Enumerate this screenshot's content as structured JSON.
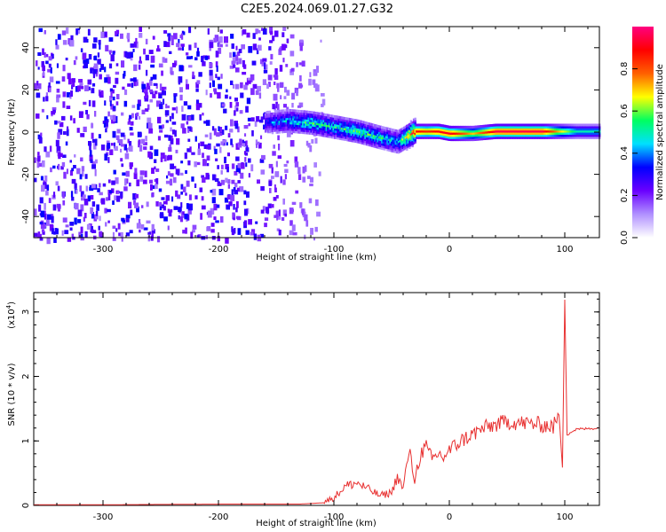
{
  "chart_data": [
    {
      "type": "heatmap",
      "title": "C2E5.2024.069.01.27.G32",
      "xlabel": "Height of straight line (km)",
      "ylabel": "Frequency (Hz)",
      "xlim": [
        -360,
        130
      ],
      "ylim": [
        -50,
        50
      ],
      "xticks": [
        -300,
        -200,
        -100,
        0,
        100
      ],
      "yticks": [
        -40,
        -20,
        0,
        20,
        40
      ],
      "colorbar": {
        "label": "Normalized spectral amplitude",
        "range": [
          0,
          1
        ],
        "ticks": [
          "0.0",
          "0.2",
          "0.4",
          "0.6",
          "0.8"
        ],
        "colors": [
          "#ffffff",
          "#b090ff",
          "#6a00ff",
          "#0000ff",
          "#00e0ff",
          "#00ff60",
          "#ffff00",
          "#ff6000",
          "#ff0000",
          "#ff0080"
        ]
      },
      "ridge": {
        "x_km": [
          -160,
          -140,
          -120,
          -100,
          -80,
          -60,
          -45,
          -30,
          -20,
          -10,
          0,
          20,
          40,
          60,
          80,
          95,
          110,
          130
        ],
        "freq_hz": [
          5,
          6,
          5,
          3,
          1,
          -2,
          -4,
          1,
          1,
          1,
          0,
          0,
          1,
          1,
          1,
          1,
          1,
          1
        ],
        "amplitude": [
          0.35,
          0.45,
          0.55,
          0.5,
          0.55,
          0.5,
          0.45,
          0.9,
          0.85,
          0.9,
          0.92,
          0.7,
          0.95,
          0.95,
          0.95,
          0.7,
          0.5,
          0.5
        ]
      },
      "noise_region_x_km": [
        -360,
        -110
      ]
    },
    {
      "type": "line",
      "xlabel": "Height of straight line (km)",
      "ylabel": "SNR (10 * v/v)",
      "yscale_label": "(x10",
      "yscale_exp": "4",
      "xlim": [
        -360,
        130
      ],
      "ylim": [
        0,
        3.3
      ],
      "xticks": [
        -300,
        -200,
        -100,
        0,
        100
      ],
      "yticks": [
        0,
        1,
        2,
        3
      ],
      "color": "#e83030",
      "x": [
        -360,
        -300,
        -200,
        -130,
        -110,
        -100,
        -90,
        -80,
        -70,
        -60,
        -50,
        -45,
        -40,
        -35,
        -30,
        -25,
        -20,
        -15,
        -10,
        -5,
        0,
        10,
        20,
        30,
        40,
        50,
        60,
        70,
        80,
        90,
        95,
        98,
        100,
        102,
        110,
        120,
        130
      ],
      "y": [
        0.01,
        0.01,
        0.02,
        0.02,
        0.04,
        0.12,
        0.3,
        0.35,
        0.25,
        0.15,
        0.2,
        0.45,
        0.25,
        0.85,
        0.4,
        0.8,
        0.9,
        0.7,
        0.8,
        0.75,
        0.85,
        1.0,
        1.1,
        1.2,
        1.25,
        1.3,
        1.28,
        1.27,
        1.25,
        1.22,
        1.4,
        0.6,
        3.2,
        1.1,
        1.18,
        1.19,
        1.2
      ]
    }
  ]
}
